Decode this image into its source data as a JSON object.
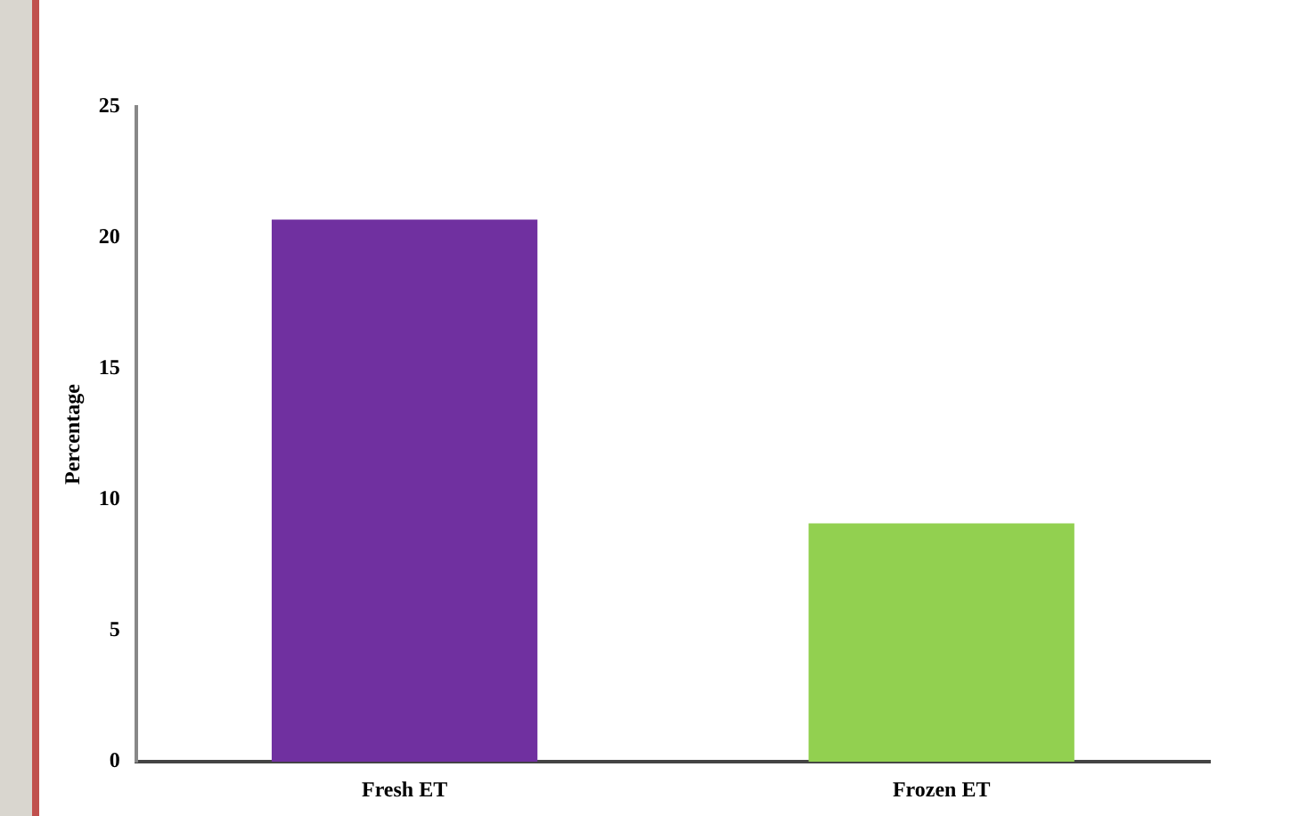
{
  "chart_data": {
    "type": "bar",
    "ylabel": "Percentage",
    "categories": [
      "Fresh ET",
      "Frozen ET"
    ],
    "values": [
      20.7,
      9.1
    ],
    "colors": [
      "#7030a0",
      "#92d050"
    ],
    "ylim": [
      0,
      25
    ],
    "yticks": [
      0,
      5,
      10,
      15,
      20,
      25
    ],
    "grid": false,
    "legend": false
  }
}
